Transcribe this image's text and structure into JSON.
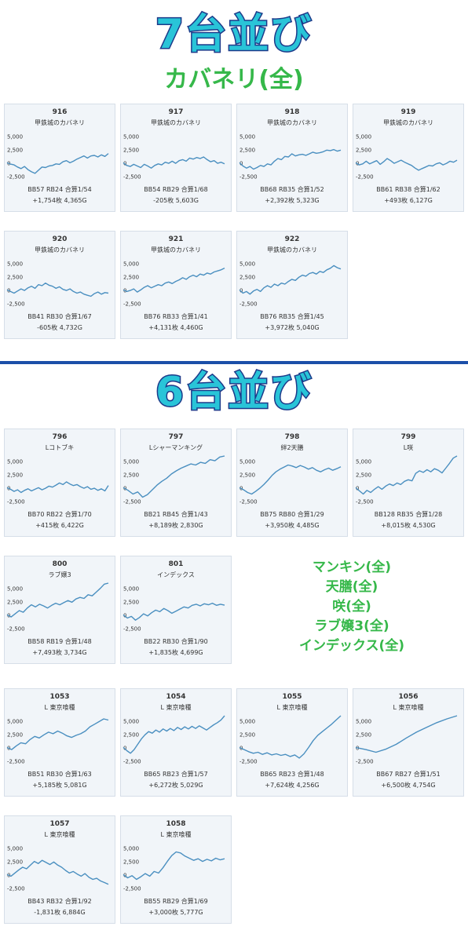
{
  "sections": {
    "first": {
      "title": "7台並び",
      "subtitle": "カバネリ(全)"
    },
    "second": {
      "title": "6台並び"
    }
  },
  "notes": [
    "マンキン(全)",
    "天膳(全)",
    "咲(全)",
    "ラブ嬢3(全)",
    "インデックス(全)"
  ],
  "colors": {
    "line": "#4a8fc0",
    "title": "#29c4d8",
    "title_outline": "#1d3a8a",
    "note": "#36b84a",
    "divider": "#1b4fa8"
  },
  "chart_data": [
    {
      "type": "line",
      "title": "916",
      "machine": "甲鉄城のカバネリ",
      "y_ticks": [
        "5,000",
        "2,500",
        "0",
        "-2,500"
      ],
      "ylim": [
        -3500,
        6000
      ],
      "values": [
        0,
        -250,
        -400,
        -800,
        -1100,
        -700,
        -1300,
        -1700,
        -2000,
        -1400,
        -800,
        -900,
        -600,
        -500,
        -200,
        -300,
        200,
        400,
        0,
        300,
        700,
        1000,
        1300,
        900,
        1300,
        1400,
        1100,
        1500,
        1200,
        1754
      ],
      "stats1": "BB57 RB24 合算1/54",
      "stats2": "+1,754枚 4,365G"
    },
    {
      "type": "line",
      "title": "917",
      "machine": "甲鉄城のカバネリ",
      "y_ticks": [
        "5,000",
        "2,500",
        "0",
        "-2,500"
      ],
      "ylim": [
        -3500,
        6000
      ],
      "values": [
        0,
        -500,
        -700,
        -300,
        -600,
        -900,
        -300,
        -600,
        -1000,
        -500,
        -200,
        -400,
        100,
        -100,
        300,
        -100,
        400,
        600,
        300,
        900,
        700,
        1000,
        800,
        1100,
        600,
        200,
        400,
        -100,
        100,
        -205
      ],
      "stats1": "BB54 RB29 合算1/68",
      "stats2": "-205枚 5,603G"
    },
    {
      "type": "line",
      "title": "918",
      "machine": "甲鉄城のカバネリ",
      "y_ticks": [
        "5,000",
        "2,500",
        "0",
        "-2,500"
      ],
      "ylim": [
        -3500,
        6000
      ],
      "values": [
        0,
        -600,
        -1000,
        -700,
        -1200,
        -900,
        -500,
        -700,
        -200,
        -400,
        300,
        800,
        600,
        1200,
        1100,
        1700,
        1300,
        1500,
        1600,
        1400,
        1700,
        2000,
        1800,
        1900,
        2100,
        2400,
        2300,
        2500,
        2200,
        2392
      ],
      "stats1": "BB68 RB35 合算1/52",
      "stats2": "+2,392枚 5,323G"
    },
    {
      "type": "line",
      "title": "919",
      "machine": "甲鉄城のカバネリ",
      "y_ticks": [
        "5,000",
        "2,500",
        "0",
        "-2,500"
      ],
      "ylim": [
        -3500,
        6000
      ],
      "values": [
        0,
        -400,
        -200,
        300,
        -200,
        100,
        400,
        -300,
        200,
        800,
        400,
        -100,
        200,
        500,
        100,
        -200,
        -500,
        -1000,
        -1400,
        -1100,
        -800,
        -500,
        -600,
        -200,
        0,
        -400,
        -100,
        300,
        100,
        493
      ],
      "stats1": "BB61 RB38 合算1/62",
      "stats2": "+493枚 6,127G"
    },
    {
      "type": "line",
      "title": "920",
      "machine": "甲鉄城のカバネリ",
      "y_ticks": [
        "5,000",
        "2,500",
        "0",
        "-2,500"
      ],
      "ylim": [
        -3500,
        6000
      ],
      "values": [
        0,
        -300,
        -600,
        -200,
        200,
        -100,
        400,
        700,
        300,
        1000,
        800,
        1300,
        900,
        700,
        300,
        600,
        100,
        -100,
        200,
        -300,
        -600,
        -400,
        -800,
        -1000,
        -1200,
        -700,
        -400,
        -800,
        -500,
        -605
      ],
      "stats1": "BB41 RB30 合算1/67",
      "stats2": "-605枚 4,732G"
    },
    {
      "type": "line",
      "title": "921",
      "machine": "甲鉄城のカバネリ",
      "y_ticks": [
        "5,000",
        "2,500",
        "0",
        "-2,500"
      ],
      "ylim": [
        -3500,
        6000
      ],
      "values": [
        0,
        -300,
        -100,
        200,
        -400,
        0,
        500,
        800,
        400,
        700,
        1000,
        800,
        1300,
        1500,
        1200,
        1600,
        1900,
        2300,
        2000,
        2500,
        2800,
        2500,
        3000,
        2800,
        3200,
        3000,
        3400,
        3600,
        3800,
        4131
      ],
      "stats1": "BB76 RB33 合算1/41",
      "stats2": "+4,131枚 4,460G"
    },
    {
      "type": "line",
      "title": "922",
      "machine": "甲鉄城のカバネリ",
      "y_ticks": [
        "5,000",
        "2,500",
        "0",
        "-2,500"
      ],
      "ylim": [
        -3500,
        6000
      ],
      "values": [
        0,
        -600,
        -300,
        -800,
        -200,
        100,
        -300,
        400,
        800,
        500,
        1100,
        800,
        1300,
        1100,
        1600,
        2000,
        1800,
        2400,
        2800,
        2600,
        3100,
        3300,
        3000,
        3500,
        3300,
        3800,
        4100,
        4600,
        4200,
        3972
      ],
      "stats1": "BB76 RB35 合算1/45",
      "stats2": "+3,972枚 5,040G"
    },
    {
      "type": "line",
      "title": "796",
      "machine": "Lコトブキ",
      "y_ticks": [
        "5,000",
        "2,500",
        "0",
        "-2,500"
      ],
      "ylim": [
        -3500,
        6000
      ],
      "values": [
        0,
        -300,
        -700,
        -400,
        -900,
        -500,
        -200,
        -600,
        -300,
        0,
        -400,
        -100,
        300,
        100,
        500,
        900,
        600,
        1100,
        700,
        400,
        600,
        200,
        -100,
        200,
        -300,
        -100,
        -500,
        -200,
        -600,
        415
      ],
      "stats1": "BB70 RB22 合算1/70",
      "stats2": "+415枚 6,422G"
    },
    {
      "type": "line",
      "title": "797",
      "machine": "Lシャーマンキング",
      "y_ticks": [
        "5,000",
        "2,500",
        "0",
        "-2,500"
      ],
      "ylim": [
        -3500,
        6000
      ],
      "values": [
        0,
        -500,
        -1200,
        -800,
        -1800,
        -1300,
        -400,
        500,
        1200,
        1800,
        2600,
        3200,
        3700,
        4100,
        4500,
        4300,
        4800,
        4600,
        5300,
        5100,
        5800,
        8189
      ],
      "stats1": "BB21 RB45 合算1/43",
      "stats2": "+8,189枚 2,830G"
    },
    {
      "type": "line",
      "title": "798",
      "machine": "絆2天膳",
      "y_ticks": [
        "5,000",
        "2,500",
        "0",
        "-2,500"
      ],
      "ylim": [
        -3500,
        6000
      ],
      "values": [
        0,
        -400,
        -900,
        -1200,
        -700,
        -100,
        600,
        1400,
        2300,
        3000,
        3500,
        3900,
        4300,
        4100,
        3800,
        4200,
        3900,
        3500,
        3800,
        3300,
        3000,
        3400,
        3700,
        3300,
        3600,
        3950
      ],
      "stats1": "BB75 RB80 合算1/29",
      "stats2": "+3,950枚 4,485G"
    },
    {
      "type": "line",
      "title": "799",
      "machine": "L咲",
      "y_ticks": [
        "5,000",
        "2,500",
        "0",
        "-2,500"
      ],
      "ylim": [
        -3500,
        6000
      ],
      "values": [
        0,
        -600,
        -1200,
        -500,
        -900,
        -300,
        200,
        -300,
        300,
        700,
        400,
        900,
        600,
        1200,
        1500,
        1300,
        2700,
        3200,
        2900,
        3400,
        3000,
        3600,
        3300,
        2800,
        3700,
        4600,
        5600,
        8015
      ],
      "stats1": "BB128 RB35 合算1/28",
      "stats2": "+8,015枚 4,530G"
    },
    {
      "type": "line",
      "title": "800",
      "machine": "ラブ嬢3",
      "y_ticks": [
        "5,000",
        "2,500",
        "0",
        "-2,500"
      ],
      "ylim": [
        -3500,
        6000
      ],
      "values": [
        0,
        -400,
        200,
        800,
        500,
        1300,
        1900,
        1500,
        2000,
        1700,
        1300,
        1800,
        2200,
        1900,
        2300,
        2700,
        2400,
        3000,
        3300,
        3100,
        3800,
        3600,
        4300,
        5000,
        5800,
        7493
      ],
      "stats1": "BB58 RB19 合算1/48",
      "stats2": "+7,493枚 3,734G"
    },
    {
      "type": "line",
      "title": "801",
      "machine": "インデックス",
      "y_ticks": [
        "5,000",
        "2,500",
        "0",
        "-2,500"
      ],
      "ylim": [
        -3500,
        6000
      ],
      "values": [
        0,
        -600,
        -300,
        -1000,
        -500,
        200,
        -200,
        400,
        900,
        600,
        1200,
        800,
        300,
        700,
        1100,
        1500,
        1300,
        1800,
        2000,
        1700,
        2100,
        1900,
        2200,
        1800,
        2000,
        1835
      ],
      "stats1": "BB22 RB30 合算1/90",
      "stats2": "+1,835枚 4,699G"
    },
    {
      "type": "line",
      "title": "1053",
      "machine": "L 東京喰種",
      "y_ticks": [
        "5,000",
        "2,500",
        "0",
        "-2,500"
      ],
      "ylim": [
        -3500,
        6000
      ],
      "values": [
        0,
        -400,
        300,
        900,
        700,
        1500,
        2100,
        1800,
        2400,
        2900,
        2600,
        3100,
        2700,
        2200,
        1900,
        2300,
        2600,
        3100,
        3900,
        4400,
        4900,
        5400,
        5185
      ],
      "stats1": "BB51 RB30 合算1/63",
      "stats2": "+5,185枚 5,081G"
    },
    {
      "type": "line",
      "title": "1054",
      "machine": "L 東京喰種",
      "y_ticks": [
        "5,000",
        "2,500",
        "0",
        "-2,500"
      ],
      "ylim": [
        -3500,
        6000
      ],
      "values": [
        0,
        -600,
        -1100,
        -400,
        600,
        1600,
        2400,
        3000,
        2700,
        3300,
        2900,
        3500,
        3100,
        3600,
        3200,
        3800,
        3400,
        3900,
        3500,
        4000,
        3600,
        4100,
        3700,
        3300,
        3800,
        4300,
        4700,
        5200,
        6272
      ],
      "stats1": "BB65 RB23 合算1/57",
      "stats2": "+6,272枚 5,029G"
    },
    {
      "type": "line",
      "title": "1055",
      "machine": "L 東京喰種",
      "y_ticks": [
        "5,000",
        "2,500",
        "0",
        "-2,500"
      ],
      "ylim": [
        -3500,
        6000
      ],
      "values": [
        0,
        -400,
        -800,
        -1100,
        -900,
        -1300,
        -1000,
        -1400,
        -1200,
        -1500,
        -1300,
        -1700,
        -1400,
        -2000,
        -1200,
        0,
        1300,
        2300,
        3000,
        3700,
        4400,
        5200,
        7624
      ],
      "stats1": "BB65 RB23 合算1/48",
      "stats2": "+7,624枚 4,256G"
    },
    {
      "type": "line",
      "title": "1056",
      "machine": "L 東京喰種",
      "y_ticks": [
        "5,000",
        "2,500",
        "0",
        "-2,500"
      ],
      "ylim": [
        -3500,
        6000
      ],
      "values": [
        0,
        -400,
        -900,
        -300,
        600,
        1800,
        2900,
        3800,
        4700,
        5400,
        6500
      ],
      "stats1": "BB67 RB27 合算1/51",
      "stats2": "+6,500枚 4,754G"
    },
    {
      "type": "line",
      "title": "1057",
      "machine": "L 東京喰種",
      "y_ticks": [
        "5,000",
        "2,500",
        "0",
        "-2,500"
      ],
      "ylim": [
        -3500,
        6000
      ],
      "values": [
        0,
        -300,
        300,
        900,
        1400,
        1100,
        1800,
        2500,
        2100,
        2700,
        2300,
        1900,
        2400,
        1800,
        1400,
        800,
        300,
        600,
        100,
        -300,
        200,
        -500,
        -900,
        -700,
        -1200,
        -1500,
        -1831
      ],
      "stats1": "BB43 RB32 合算1/92",
      "stats2": "-1,831枚 6,884G"
    },
    {
      "type": "line",
      "title": "1058",
      "machine": "L 東京喰種",
      "y_ticks": [
        "5,000",
        "2,500",
        "0",
        "-2,500"
      ],
      "ylim": [
        -3500,
        6000
      ],
      "values": [
        0,
        -600,
        -200,
        -900,
        -400,
        200,
        -300,
        600,
        300,
        1300,
        2500,
        3600,
        4300,
        4100,
        3500,
        3100,
        2700,
        3000,
        2500,
        2900,
        2600,
        3100,
        2800,
        3000
      ],
      "stats1": "BB55 RB29 合算1/69",
      "stats2": "+3,000枚 5,777G"
    }
  ]
}
